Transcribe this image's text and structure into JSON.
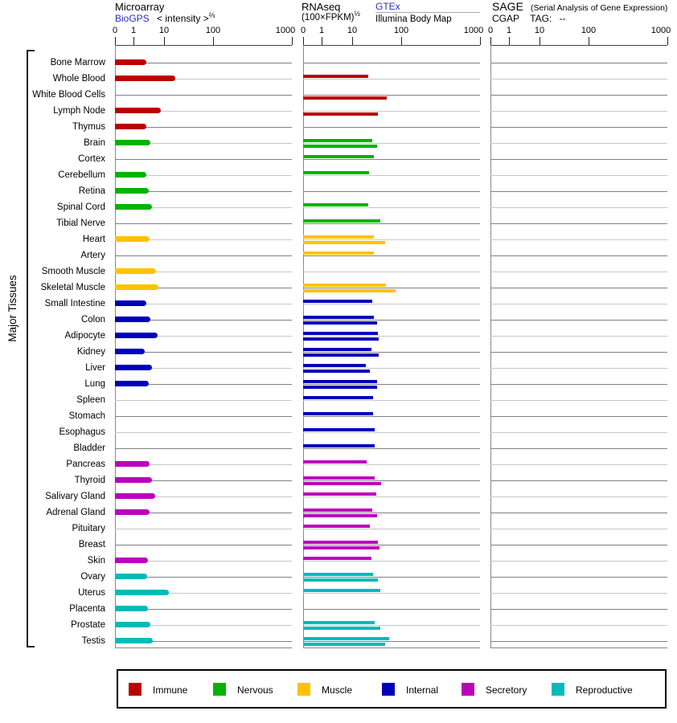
{
  "header": {
    "microarray": {
      "title": "Microarray",
      "link_label": "BioGPS",
      "subtitle": "< intensity >",
      "exponent": "⅔"
    },
    "rnaseq": {
      "title": "RNAseq",
      "formula": "(100×FPKM)",
      "exponent": "½",
      "link_label": "GTEx",
      "second_source": "Illumina Body Map"
    },
    "sage": {
      "title": "SAGE",
      "note": "(Serial Analysis of Gene Expression)",
      "cgap_label": "CGAP",
      "tag_label": "TAG:",
      "tag_value": "--"
    }
  },
  "side_label": "Major Tissues",
  "axis": {
    "tick_labels": [
      "0",
      "1",
      "10",
      "100",
      "1000"
    ],
    "tick_values": [
      0,
      1,
      10,
      100,
      1000
    ]
  },
  "legend": {
    "items": [
      {
        "key": "immune",
        "label": "Immune",
        "color": "#BB0000"
      },
      {
        "key": "nervous",
        "label": "Nervous",
        "color": "#00B400"
      },
      {
        "key": "muscle",
        "label": "Muscle",
        "color": "#FFC200"
      },
      {
        "key": "internal",
        "label": "Internal",
        "color": "#0000BB"
      },
      {
        "key": "secretory",
        "label": "Secretory",
        "color": "#BB00BB"
      },
      {
        "key": "reproductive",
        "label": "Reproductive",
        "color": "#00BBBB"
      }
    ]
  },
  "chart_data": {
    "type": "bar",
    "orientation": "horizontal",
    "scale": "nonlinear expression axis, ticks at 0, 1, 10, 100, 1000",
    "panels": [
      {
        "name": "Microarray",
        "series": [
          "microarray"
        ]
      },
      {
        "name": "RNAseq",
        "series": [
          "gtex",
          "illumina"
        ]
      },
      {
        "name": "SAGE",
        "series": [
          "sage"
        ]
      }
    ],
    "tissues": [
      {
        "name": "Bone Marrow",
        "group": "immune",
        "microarray": 2.6,
        "gtex": null,
        "illumina": null,
        "sage": null
      },
      {
        "name": "Whole Blood",
        "group": "immune",
        "microarray": 17,
        "gtex": 21,
        "illumina": null,
        "sage": null
      },
      {
        "name": "White Blood Cells",
        "group": "immune",
        "microarray": null,
        "gtex": null,
        "illumina": 50,
        "sage": null
      },
      {
        "name": "Lymph Node",
        "group": "immune",
        "microarray": 8,
        "gtex": null,
        "illumina": 34,
        "sage": null
      },
      {
        "name": "Thymus",
        "group": "immune",
        "microarray": 2.6,
        "gtex": null,
        "illumina": null,
        "sage": null
      },
      {
        "name": "Brain",
        "group": "nervous",
        "microarray": 3.6,
        "gtex": 26,
        "illumina": 32,
        "sage": null
      },
      {
        "name": "Cortex",
        "group": "nervous",
        "microarray": null,
        "gtex": 28,
        "illumina": null,
        "sage": null
      },
      {
        "name": "Cerebellum",
        "group": "nervous",
        "microarray": 2.6,
        "gtex": 22,
        "illumina": null,
        "sage": null
      },
      {
        "name": "Retina",
        "group": "nervous",
        "microarray": 3.2,
        "gtex": null,
        "illumina": null,
        "sage": null
      },
      {
        "name": "Spinal Cord",
        "group": "nervous",
        "microarray": 4,
        "gtex": 21,
        "illumina": null,
        "sage": null
      },
      {
        "name": "Tibial Nerve",
        "group": "nervous",
        "microarray": null,
        "gtex": 37,
        "illumina": null,
        "sage": null
      },
      {
        "name": "Heart",
        "group": "muscle",
        "microarray": 3.3,
        "gtex": 28,
        "illumina": 47,
        "sage": null
      },
      {
        "name": "Artery",
        "group": "muscle",
        "microarray": null,
        "gtex": 28,
        "illumina": null,
        "sage": null
      },
      {
        "name": "Smooth Muscle",
        "group": "muscle",
        "microarray": 5.5,
        "gtex": null,
        "illumina": null,
        "sage": null
      },
      {
        "name": "Skeletal Muscle",
        "group": "muscle",
        "microarray": 6.7,
        "gtex": 49,
        "illumina": 78,
        "sage": null
      },
      {
        "name": "Small Intestine",
        "group": "internal",
        "microarray": 2.6,
        "gtex": 26,
        "illumina": null,
        "sage": null
      },
      {
        "name": "Colon",
        "group": "internal",
        "microarray": 3.6,
        "gtex": 28,
        "illumina": 32,
        "sage": null
      },
      {
        "name": "Adipocyte",
        "group": "internal",
        "microarray": 6.2,
        "gtex": 34,
        "illumina": 35,
        "sage": null
      },
      {
        "name": "Kidney",
        "group": "internal",
        "microarray": 2.3,
        "gtex": 25,
        "illumina": 35,
        "sage": null
      },
      {
        "name": "Liver",
        "group": "internal",
        "microarray": 4,
        "gtex": 19,
        "illumina": 23,
        "sage": null
      },
      {
        "name": "Lung",
        "group": "internal",
        "microarray": 3.2,
        "gtex": 32,
        "illumina": 32,
        "sage": null
      },
      {
        "name": "Spleen",
        "group": "internal",
        "microarray": null,
        "gtex": 27,
        "illumina": null,
        "sage": null
      },
      {
        "name": "Stomach",
        "group": "internal",
        "microarray": null,
        "gtex": 27,
        "illumina": null,
        "sage": null
      },
      {
        "name": "Esophagus",
        "group": "internal",
        "microarray": null,
        "gtex": 29,
        "illumina": null,
        "sage": null
      },
      {
        "name": "Bladder",
        "group": "internal",
        "microarray": null,
        "gtex": 29,
        "illumina": null,
        "sage": null
      },
      {
        "name": "Pancreas",
        "group": "secretory",
        "microarray": 3.4,
        "gtex": 20,
        "illumina": null,
        "sage": null
      },
      {
        "name": "Thyroid",
        "group": "secretory",
        "microarray": 4,
        "gtex": 29,
        "illumina": 39,
        "sage": null
      },
      {
        "name": "Salivary Gland",
        "group": "secretory",
        "microarray": 5.1,
        "gtex": 31,
        "illumina": null,
        "sage": null
      },
      {
        "name": "Adrenal Gland",
        "group": "secretory",
        "microarray": 3.4,
        "gtex": 26,
        "illumina": 32,
        "sage": null
      },
      {
        "name": "Pituitary",
        "group": "secretory",
        "microarray": null,
        "gtex": 23,
        "illumina": null,
        "sage": null
      },
      {
        "name": "Breast",
        "group": "secretory",
        "microarray": null,
        "gtex": 34,
        "illumina": 36,
        "sage": null
      },
      {
        "name": "Skin",
        "group": "secretory",
        "microarray": 3,
        "gtex": 25,
        "illumina": null,
        "sage": null
      },
      {
        "name": "Ovary",
        "group": "reproductive",
        "microarray": 2.8,
        "gtex": 27,
        "illumina": 34,
        "sage": null
      },
      {
        "name": "Uterus",
        "group": "reproductive",
        "microarray": 12.5,
        "gtex": 37,
        "illumina": null,
        "sage": null
      },
      {
        "name": "Placenta",
        "group": "reproductive",
        "microarray": 3,
        "gtex": null,
        "illumina": null,
        "sage": null
      },
      {
        "name": "Prostate",
        "group": "reproductive",
        "microarray": 3.6,
        "gtex": 29,
        "illumina": 37,
        "sage": null
      },
      {
        "name": "Testis",
        "group": "reproductive",
        "microarray": 4.3,
        "gtex": 56,
        "illumina": 47,
        "sage": null
      }
    ]
  }
}
